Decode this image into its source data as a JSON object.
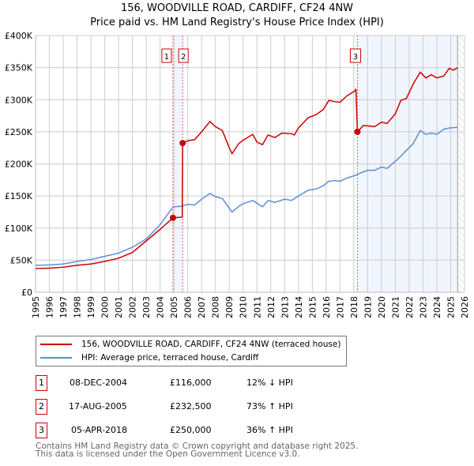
{
  "chart_data": {
    "type": "line",
    "title": "156, WOODVILLE ROAD, CARDIFF, CF24 4NW",
    "subtitle": "Price paid vs. HM Land Registry's House Price Index (HPI)",
    "xlim": [
      1995,
      2026
    ],
    "ylim": [
      0,
      400000
    ],
    "x_ticks": [
      "1995",
      "1996",
      "1997",
      "1998",
      "1999",
      "2000",
      "2001",
      "2002",
      "2003",
      "2004",
      "2005",
      "2006",
      "2007",
      "2008",
      "2009",
      "2010",
      "2011",
      "2012",
      "2013",
      "2014",
      "2015",
      "2016",
      "2017",
      "2018",
      "2019",
      "2020",
      "2021",
      "2022",
      "2023",
      "2024",
      "2025",
      "2026"
    ],
    "y_ticks": [
      {
        "v": 0,
        "l": "£0"
      },
      {
        "v": 50000,
        "l": "£50K"
      },
      {
        "v": 100000,
        "l": "£100K"
      },
      {
        "v": 150000,
        "l": "£150K"
      },
      {
        "v": 200000,
        "l": "£200K"
      },
      {
        "v": 250000,
        "l": "£250K"
      },
      {
        "v": 300000,
        "l": "£300K"
      },
      {
        "v": 350000,
        "l": "£350K"
      },
      {
        "v": 400000,
        "l": "£400K"
      }
    ],
    "grid": true,
    "series": [
      {
        "name": "156, WOODVILLE ROAD, CARDIFF, CF24 4NW (terraced house)",
        "color": "#cc0000",
        "x": [
          1995,
          1996,
          1997,
          1998,
          1999,
          2000,
          2001,
          2002,
          2003,
          2004,
          2004.93,
          2005.6,
          2005.63,
          2006,
          2006.5,
          2007,
          2007.6,
          2008,
          2008.5,
          2009,
          2009.2,
          2009.7,
          2010,
          2010.7,
          2011,
          2011.4,
          2011.8,
          2012.3,
          2012.8,
          2013.5,
          2013.7,
          2014,
          2014.7,
          2015.3,
          2015.8,
          2016.2,
          2016.6,
          2017,
          2017.5,
          2018.1,
          2018.15,
          2018.26,
          2018.7,
          2019.5,
          2020,
          2020.4,
          2021,
          2021.4,
          2021.8,
          2022.3,
          2022.8,
          2023.2,
          2023.6,
          2024,
          2024.5,
          2024.9,
          2025.2,
          2025.5
        ],
        "y": [
          37000,
          37500,
          39000,
          42000,
          44000,
          48000,
          53000,
          62000,
          80000,
          98000,
          116000,
          117000,
          232500,
          236000,
          238000,
          250000,
          266000,
          258000,
          252000,
          225000,
          216000,
          232000,
          237000,
          246000,
          234000,
          230000,
          245000,
          241000,
          248000,
          247000,
          245000,
          256000,
          272000,
          277000,
          285000,
          299000,
          297000,
          296000,
          306000,
          314000,
          317000,
          250000,
          260000,
          258000,
          265000,
          263000,
          278000,
          299000,
          302000,
          325000,
          343000,
          334000,
          339000,
          334000,
          337000,
          349000,
          346000,
          350000
        ]
      },
      {
        "name": "HPI: Average price, terraced house, Cardiff",
        "color": "#5b8fd6",
        "x": [
          1995,
          1996,
          1997,
          1998,
          1999,
          2000,
          2001,
          2002,
          2003,
          2004,
          2004.93,
          2005.6,
          2006,
          2006.5,
          2007,
          2007.6,
          2008,
          2008.5,
          2009.2,
          2009.7,
          2010,
          2010.7,
          2011.4,
          2011.8,
          2012.3,
          2013,
          2013.5,
          2014,
          2014.7,
          2015.3,
          2015.8,
          2016.2,
          2016.6,
          2017,
          2017.5,
          2018.1,
          2018.5,
          2019,
          2019.5,
          2020,
          2020.4,
          2021,
          2021.4,
          2021.8,
          2022.3,
          2022.8,
          2023.2,
          2023.6,
          2024,
          2024.5,
          2024.9,
          2025.5
        ],
        "y": [
          42000,
          42500,
          44000,
          48000,
          51000,
          56000,
          61000,
          70000,
          83000,
          105000,
          133000,
          134000,
          137000,
          136000,
          145000,
          154000,
          149000,
          146000,
          125000,
          134000,
          138000,
          143000,
          133000,
          143000,
          140000,
          145000,
          143000,
          150000,
          159000,
          161000,
          166000,
          173000,
          174000,
          173000,
          178000,
          182000,
          186000,
          190000,
          190000,
          195000,
          193000,
          204000,
          212000,
          221000,
          232000,
          252000,
          246000,
          248000,
          246000,
          254000,
          256000,
          257000
        ]
      }
    ],
    "transactions": [
      {
        "label": "1",
        "x": 2004.93,
        "price": 116000,
        "date": "08-DEC-2004",
        "price_text": "£116,000",
        "hpi": "12% ↓ HPI"
      },
      {
        "label": "2",
        "x": 2005.63,
        "price": 232500,
        "date": "17-AUG-2005",
        "price_text": "£232,500",
        "hpi": "73% ↑ HPI"
      },
      {
        "label": "3",
        "x": 2018.26,
        "price": 250000,
        "date": "05-APR-2018",
        "price_text": "£250,000",
        "hpi": "36% ↑ HPI"
      }
    ],
    "shaded_ranges": [
      [
        2004.93,
        2005.63
      ],
      [
        2018.26,
        2025.5
      ]
    ],
    "forecast_start": 2025.5,
    "legend_placement": "below"
  },
  "footer": {
    "line1": "Contains HM Land Registry data © Crown copyright and database right 2025.",
    "line2": "This data is licensed under the Open Government Licence v3.0."
  }
}
